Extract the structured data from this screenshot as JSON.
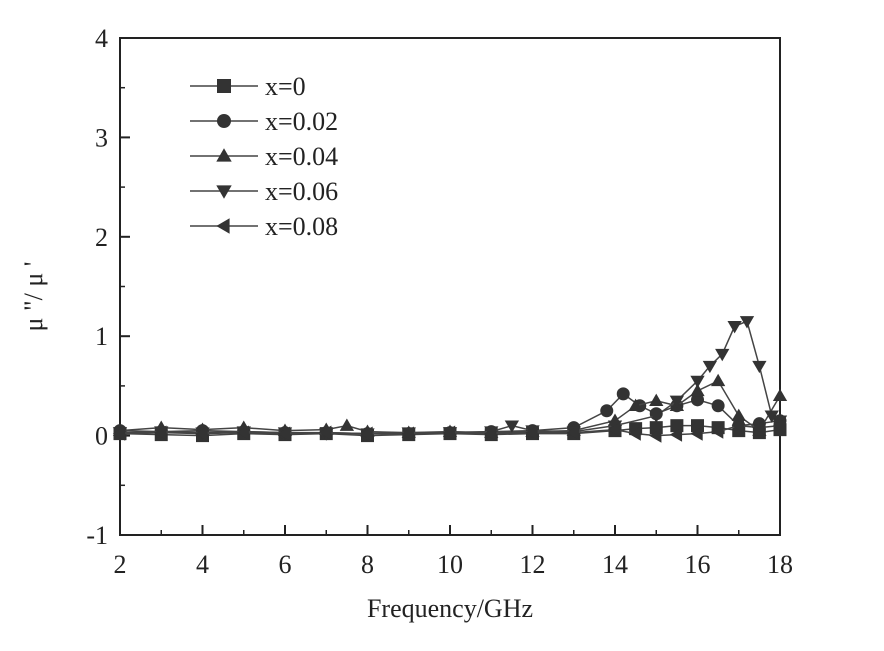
{
  "chart_data": {
    "type": "line",
    "title": "",
    "xlabel": "Frequency/GHz",
    "ylabel": "μ \"/ μ '",
    "xlim": [
      2,
      18
    ],
    "ylim": [
      -1,
      4
    ],
    "xticks": [
      2,
      4,
      6,
      8,
      10,
      12,
      14,
      16,
      18
    ],
    "yticks": [
      -1,
      0,
      1,
      2,
      3,
      4
    ],
    "legend_position": "top-left",
    "grid": false,
    "series": [
      {
        "name": "x=0",
        "marker": "square",
        "x": [
          2,
          3,
          4,
          5,
          6,
          7,
          8,
          9,
          10,
          11,
          12,
          13,
          14,
          14.5,
          15,
          15.5,
          16,
          16.5,
          17,
          17.5,
          18
        ],
        "y": [
          0.02,
          0.01,
          0.0,
          0.02,
          0.01,
          0.02,
          0.0,
          0.01,
          0.02,
          0.01,
          0.02,
          0.02,
          0.05,
          0.07,
          0.08,
          0.1,
          0.1,
          0.08,
          0.05,
          0.03,
          0.06
        ]
      },
      {
        "name": "x=0.02",
        "marker": "circle",
        "x": [
          2,
          3,
          4,
          5,
          6,
          7,
          8,
          9,
          10,
          11,
          12,
          13,
          13.8,
          14.2,
          14.6,
          15,
          15.5,
          16,
          16.5,
          17,
          17.5,
          18
        ],
        "y": [
          0.05,
          0.04,
          0.05,
          0.04,
          0.03,
          0.03,
          0.02,
          0.02,
          0.03,
          0.04,
          0.05,
          0.08,
          0.25,
          0.42,
          0.3,
          0.22,
          0.3,
          0.36,
          0.3,
          0.1,
          0.12,
          0.15
        ]
      },
      {
        "name": "x=0.04",
        "marker": "triangle-up",
        "x": [
          2,
          3,
          4,
          5,
          6,
          7,
          7.5,
          8,
          9,
          10,
          11,
          12,
          13,
          14,
          14.5,
          15,
          15.5,
          16,
          16.5,
          17,
          17.5,
          18
        ],
        "y": [
          0.05,
          0.08,
          0.06,
          0.08,
          0.05,
          0.06,
          0.1,
          0.04,
          0.03,
          0.04,
          0.03,
          0.04,
          0.05,
          0.15,
          0.3,
          0.35,
          0.3,
          0.45,
          0.55,
          0.2,
          0.05,
          0.4
        ]
      },
      {
        "name": "x=0.06",
        "marker": "triangle-down",
        "x": [
          2,
          3,
          4,
          5,
          6,
          7,
          8,
          9,
          10,
          11,
          11.5,
          12,
          13,
          14,
          15,
          15.5,
          16,
          16.3,
          16.6,
          16.9,
          17.2,
          17.5,
          17.8,
          18
        ],
        "y": [
          0.03,
          0.04,
          0.03,
          0.04,
          0.03,
          0.02,
          0.02,
          0.03,
          0.03,
          0.04,
          0.1,
          0.05,
          0.04,
          0.1,
          0.2,
          0.35,
          0.55,
          0.7,
          0.82,
          1.1,
          1.15,
          0.7,
          0.2,
          0.15
        ]
      },
      {
        "name": "x=0.08",
        "marker": "triangle-left",
        "x": [
          2,
          3,
          4,
          5,
          6,
          7,
          8,
          9,
          10,
          11,
          12,
          13,
          14,
          14.5,
          15,
          15.5,
          16,
          16.5,
          17,
          17.5,
          18
        ],
        "y": [
          0.02,
          0.03,
          0.02,
          0.03,
          0.02,
          0.03,
          0.02,
          0.02,
          0.03,
          0.02,
          0.03,
          0.03,
          0.06,
          0.02,
          0.0,
          0.01,
          0.02,
          0.04,
          0.1,
          0.08,
          0.1
        ]
      }
    ]
  }
}
